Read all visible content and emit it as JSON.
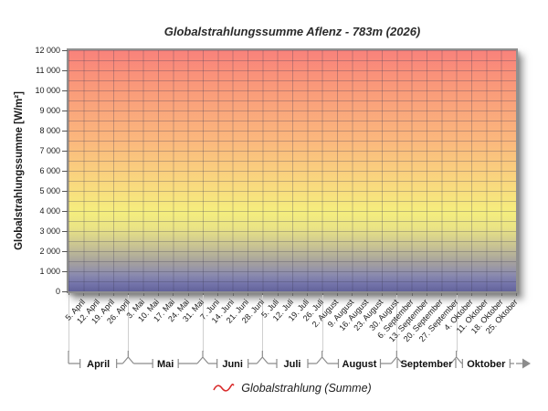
{
  "title": "Globalstrahlungssumme Aflenz - 783m (2026)",
  "y_axis": {
    "label": "Globalstrahlungssumme [W/m²]",
    "ticks": [
      "12 000",
      "11 000",
      "10 000",
      "9 000",
      "8 000",
      "7 000",
      "6 000",
      "5 000",
      "4 000",
      "3 000",
      "2 000",
      "1 000",
      "0"
    ]
  },
  "x_axis": {
    "dates": [
      "5. April",
      "12. April",
      "19. April",
      "26. April",
      "3. Mai",
      "10. Mai",
      "17. Mai",
      "24. Mai",
      "31. Mai",
      "7. Juni",
      "14. Juni",
      "21. Juni",
      "28. Juni",
      "5. Juli",
      "12. Juli",
      "19. Juli",
      "26. Juli",
      "2. August",
      "9. August",
      "16. August",
      "23. August",
      "30. August",
      "6. September",
      "13. September",
      "20. September",
      "27. September",
      "4. Oktober",
      "11. Oktober",
      "18. Oktober",
      "25. Oktober"
    ],
    "months": [
      {
        "label": "April",
        "weeks": 4
      },
      {
        "label": "Mai",
        "weeks": 5
      },
      {
        "label": "Juni",
        "weeks": 4
      },
      {
        "label": "Juli",
        "weeks": 4
      },
      {
        "label": "August",
        "weeks": 5
      },
      {
        "label": "September",
        "weeks": 4
      },
      {
        "label": "Oktober",
        "weeks": 4
      }
    ]
  },
  "legend": {
    "label": "Globalstrahlung (Summe)",
    "swatch_color": "#d92b2b"
  },
  "colors": {
    "gradient_top": "#f9827b",
    "gradient_orange": "#fbb87d",
    "gradient_yellow": "#f5ee7e",
    "gradient_gray": "#a5a19e",
    "gradient_bottom": "#62629a",
    "grid_line": "rgba(62,60,86,0.30)",
    "bracket_line": "#8c8c8c"
  },
  "chart_data": {
    "type": "line",
    "title": "Globalstrahlungssumme Aflenz - 783m (2026)",
    "xlabel": "",
    "ylabel": "Globalstrahlungssumme [W/m²]",
    "ylim": [
      0,
      12000
    ],
    "y_tick_step": 1000,
    "y_minor_grid_step": 500,
    "grid": "on",
    "legend_position": "bottom-center",
    "categories": [
      "5. April",
      "12. April",
      "19. April",
      "26. April",
      "3. Mai",
      "10. Mai",
      "17. Mai",
      "24. Mai",
      "31. Mai",
      "7. Juni",
      "14. Juni",
      "21. Juni",
      "28. Juni",
      "5. Juli",
      "12. Juli",
      "19. Juli",
      "26. Juli",
      "2. August",
      "9. August",
      "16. August",
      "23. August",
      "30. August",
      "6. September",
      "13. September",
      "20. September",
      "27. September",
      "4. Oktober",
      "11. Oktober",
      "18. Oktober",
      "25. Oktober"
    ],
    "series": [
      {
        "name": "Globalstrahlung (Summe)",
        "color": "#d92b2b",
        "values": []
      }
    ]
  }
}
